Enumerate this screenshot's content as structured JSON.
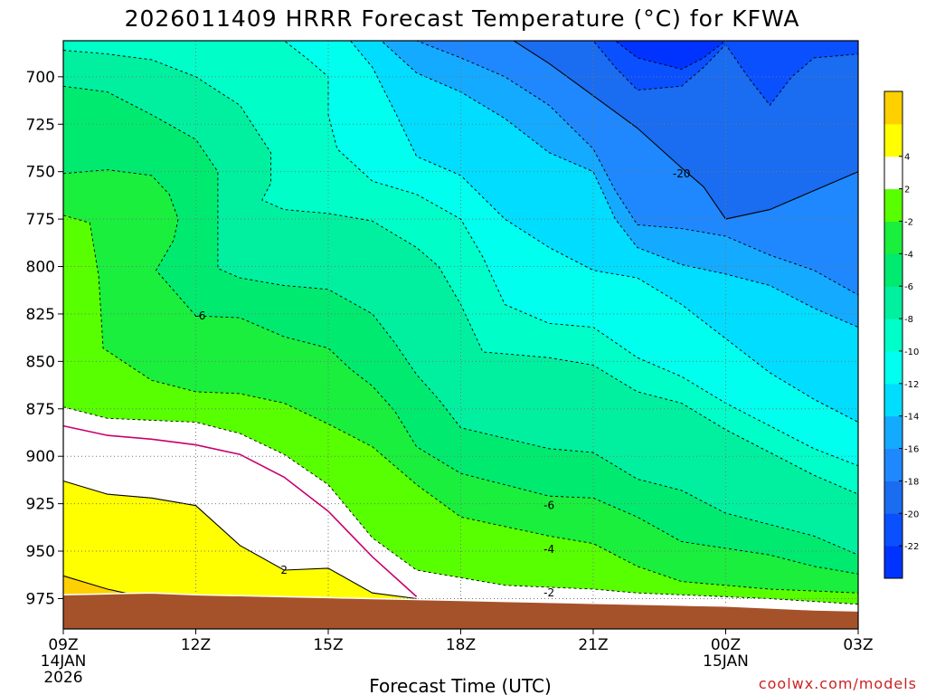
{
  "chart_data": {
    "type": "contour",
    "title": "2026011409 HRRR Forecast Temperature (°C) for KFWA",
    "xlabel": "Forecast Time (UTC)",
    "ylabel": "",
    "credit": "coolwx.com/models",
    "y_ticks": [
      "700",
      "725",
      "750",
      "775",
      "800",
      "825",
      "850",
      "875",
      "900",
      "925",
      "950",
      "975"
    ],
    "y_tick_values": [
      700,
      725,
      750,
      775,
      800,
      825,
      850,
      875,
      900,
      925,
      950,
      975
    ],
    "ylim": [
      681,
      991
    ],
    "xlim": [
      0,
      18
    ],
    "x_ticks": [
      {
        "hour": 0,
        "lines": [
          "09Z",
          "14JAN",
          "2026"
        ]
      },
      {
        "hour": 3,
        "lines": [
          "12Z"
        ]
      },
      {
        "hour": 6,
        "lines": [
          "15Z"
        ]
      },
      {
        "hour": 9,
        "lines": [
          "18Z"
        ]
      },
      {
        "hour": 12,
        "lines": [
          "21Z"
        ]
      },
      {
        "hour": 15,
        "lines": [
          "00Z",
          "15JAN"
        ]
      },
      {
        "hour": 18,
        "lines": [
          "03Z"
        ]
      }
    ],
    "colorbar": {
      "levels": [
        -24,
        -22,
        -20,
        -18,
        -16,
        -14,
        -12,
        -10,
        -8,
        -6,
        -4,
        -2,
        2,
        4,
        6
      ],
      "labels": [
        "-22",
        "-20",
        "-18",
        "-16",
        "-14",
        "-12",
        "-10",
        "-8",
        "-6",
        "-4",
        "-2",
        "2",
        "4"
      ],
      "colors": [
        "#0033ff",
        "#0a50ff",
        "#1a6cf0",
        "#1f88ff",
        "#14aaff",
        "#00ddff",
        "#00ffee",
        "#00ffc8",
        "#00f0a0",
        "#00ea70",
        "#19ef3c",
        "#58ff00",
        "#ffffff",
        "#ffff00",
        "#ffd000"
      ]
    },
    "contour_labels": [
      {
        "text": "-20",
        "hour": 14.0,
        "p": 751
      },
      {
        "text": "-6",
        "hour": 3.1,
        "p": 826
      },
      {
        "text": "-6",
        "hour": 11.0,
        "p": 926
      },
      {
        "text": "-4",
        "hour": 11.0,
        "p": 949
      },
      {
        "text": "2",
        "hour": 5.0,
        "p": 960
      },
      {
        "text": "-2",
        "hour": 11.0,
        "p": 972
      }
    ],
    "layers": [
      {
        "name": "band-lt-neg2",
        "color": "#58ff00",
        "boundary": [
          [
            0,
            874
          ],
          [
            1,
            880
          ],
          [
            3,
            882
          ],
          [
            4,
            888
          ],
          [
            5,
            899
          ],
          [
            6,
            915
          ],
          [
            7,
            943
          ],
          [
            8,
            960
          ],
          [
            10,
            968
          ],
          [
            12,
            970
          ],
          [
            13,
            972
          ],
          [
            15,
            974
          ],
          [
            16,
            975
          ],
          [
            18,
            978
          ]
        ]
      },
      {
        "name": "band-lt-neg4",
        "color": "#19ef3c",
        "boundary": [
          [
            0,
            773
          ],
          [
            0.6,
            777
          ],
          [
            0.8,
            805
          ],
          [
            0.9,
            843
          ],
          [
            2,
            860
          ],
          [
            3,
            866
          ],
          [
            4,
            867
          ],
          [
            5,
            872
          ],
          [
            6,
            883
          ],
          [
            7,
            895
          ],
          [
            8,
            915
          ],
          [
            9,
            932
          ],
          [
            11,
            942
          ],
          [
            12,
            946
          ],
          [
            13,
            958
          ],
          [
            14,
            966
          ],
          [
            16,
            970
          ],
          [
            18,
            972
          ]
        ]
      },
      {
        "name": "band-lt-neg6",
        "color": "#00ea70",
        "boundary": [
          [
            0,
            751
          ],
          [
            1,
            749
          ],
          [
            2,
            752
          ],
          [
            2.4,
            762
          ],
          [
            2.6,
            775
          ],
          [
            2.5,
            786
          ],
          [
            2.1,
            802
          ],
          [
            3,
            826
          ],
          [
            4,
            827
          ],
          [
            5,
            837
          ],
          [
            6,
            843
          ],
          [
            6.5,
            854
          ],
          [
            7,
            863
          ],
          [
            7.5,
            876
          ],
          [
            8,
            895
          ],
          [
            9,
            909
          ],
          [
            11,
            921
          ],
          [
            12,
            922
          ],
          [
            13,
            932
          ],
          [
            14,
            945
          ],
          [
            16,
            952
          ],
          [
            17,
            958
          ],
          [
            18,
            962
          ]
        ]
      },
      {
        "name": "band-lt-neg8",
        "color": "#00f0a0",
        "boundary": [
          [
            0,
            705
          ],
          [
            1,
            708
          ],
          [
            2,
            720
          ],
          [
            3,
            733
          ],
          [
            3.5,
            750
          ],
          [
            3.5,
            776
          ],
          [
            3.5,
            801
          ],
          [
            4,
            806
          ],
          [
            5,
            810
          ],
          [
            6,
            812
          ],
          [
            7,
            825
          ],
          [
            7.5,
            840
          ],
          [
            8,
            857
          ],
          [
            8.5,
            870
          ],
          [
            9,
            885
          ],
          [
            11,
            896
          ],
          [
            12,
            898
          ],
          [
            13,
            912
          ],
          [
            14,
            918
          ],
          [
            15,
            930
          ],
          [
            16,
            936
          ],
          [
            17,
            942
          ],
          [
            18,
            952
          ]
        ]
      },
      {
        "name": "band-lt-neg10",
        "color": "#00ffc8",
        "boundary": [
          [
            0,
            686
          ],
          [
            1,
            688
          ],
          [
            2,
            691
          ],
          [
            3,
            700
          ],
          [
            4,
            715
          ],
          [
            4.7,
            740
          ],
          [
            4.7,
            756
          ],
          [
            4.5,
            765
          ],
          [
            5,
            770
          ],
          [
            6,
            772
          ],
          [
            7,
            776
          ],
          [
            8,
            790
          ],
          [
            8.5,
            800
          ],
          [
            9,
            820
          ],
          [
            9.3,
            835
          ],
          [
            9.5,
            845
          ],
          [
            11,
            848
          ],
          [
            12,
            852
          ],
          [
            13,
            866
          ],
          [
            14,
            872
          ],
          [
            15,
            886
          ],
          [
            16,
            898
          ],
          [
            17,
            910
          ],
          [
            18,
            920
          ]
        ]
      },
      {
        "name": "band-lt-neg12",
        "color": "#00ffee",
        "boundary": [
          [
            0,
            681
          ],
          [
            5,
            681
          ],
          [
            5.5,
            690
          ],
          [
            6,
            700
          ],
          [
            6,
            720
          ],
          [
            6.2,
            738
          ],
          [
            7,
            755
          ],
          [
            8,
            762
          ],
          [
            9,
            775
          ],
          [
            9.5,
            795
          ],
          [
            10,
            820
          ],
          [
            11,
            830
          ],
          [
            12,
            832
          ],
          [
            13,
            848
          ],
          [
            14,
            858
          ],
          [
            15,
            872
          ],
          [
            16,
            884
          ],
          [
            17,
            896
          ],
          [
            18,
            905
          ]
        ]
      },
      {
        "name": "band-lt-neg14",
        "color": "#00ddff",
        "boundary": [
          [
            0,
            681
          ],
          [
            6.5,
            681
          ],
          [
            7,
            695
          ],
          [
            7.5,
            718
          ],
          [
            8,
            742
          ],
          [
            9,
            752
          ],
          [
            10,
            775
          ],
          [
            11,
            790
          ],
          [
            12,
            802
          ],
          [
            13,
            806
          ],
          [
            14,
            820
          ],
          [
            15,
            838
          ],
          [
            16,
            856
          ],
          [
            17,
            870
          ],
          [
            18,
            882
          ]
        ]
      },
      {
        "name": "band-lt-neg16",
        "color": "#14aaff",
        "boundary": [
          [
            0,
            681
          ],
          [
            7.2,
            681
          ],
          [
            8,
            698
          ],
          [
            9,
            708
          ],
          [
            10,
            722
          ],
          [
            11,
            740
          ],
          [
            12,
            750
          ],
          [
            12.5,
            775
          ],
          [
            13,
            790
          ],
          [
            14,
            799
          ],
          [
            15,
            804
          ],
          [
            16,
            810
          ],
          [
            17,
            822
          ],
          [
            18,
            832
          ]
        ]
      },
      {
        "name": "band-lt-neg18",
        "color": "#1f88ff",
        "boundary": [
          [
            0,
            681
          ],
          [
            8,
            681
          ],
          [
            9,
            690
          ],
          [
            10,
            700
          ],
          [
            11,
            715
          ],
          [
            12,
            738
          ],
          [
            12.5,
            760
          ],
          [
            13,
            778
          ],
          [
            14,
            780
          ],
          [
            15,
            784
          ],
          [
            16,
            794
          ],
          [
            17,
            802
          ],
          [
            18,
            815
          ]
        ]
      },
      {
        "name": "band-lt-neg20",
        "color": "#1a6cf0",
        "boundary": [
          [
            0,
            681
          ],
          [
            10.2,
            681
          ],
          [
            11,
            693
          ],
          [
            12,
            710
          ],
          [
            13,
            727
          ],
          [
            14,
            748
          ],
          [
            14.5,
            758
          ],
          [
            15,
            775
          ],
          [
            16,
            770
          ],
          [
            17,
            760
          ],
          [
            18,
            750
          ]
        ]
      },
      {
        "name": "band-lt-neg22",
        "color": "#0a50ff",
        "boundary": [
          [
            0,
            681
          ],
          [
            12,
            681
          ],
          [
            12.5,
            695
          ],
          [
            13,
            707
          ],
          [
            14,
            705
          ],
          [
            14.5,
            695
          ],
          [
            15,
            683
          ],
          [
            15.5,
            700
          ],
          [
            16,
            715
          ],
          [
            16.5,
            700
          ],
          [
            17,
            690
          ],
          [
            18,
            688
          ]
        ]
      },
      {
        "name": "band-lt-neg24",
        "color": "#0033ff",
        "boundary": [
          [
            0,
            681
          ],
          [
            12.5,
            681
          ],
          [
            13,
            690
          ],
          [
            14,
            696
          ],
          [
            14.5,
            690
          ],
          [
            15,
            681
          ],
          [
            18,
            681
          ]
        ]
      }
    ],
    "warm_layers": [
      {
        "name": "band-gt-2",
        "color": "#ffff00",
        "boundary": [
          [
            0,
            913
          ],
          [
            1,
            920
          ],
          [
            2,
            922
          ],
          [
            3,
            926
          ],
          [
            4,
            947
          ],
          [
            5,
            960
          ],
          [
            6,
            959
          ],
          [
            7,
            972
          ],
          [
            8,
            975
          ]
        ]
      },
      {
        "name": "band-gt-4",
        "color": "#ffd000",
        "boundary": [
          [
            0,
            963
          ],
          [
            1,
            970
          ],
          [
            2,
            975
          ],
          [
            3,
            976
          ]
        ]
      }
    ],
    "zero_line": [
      [
        0,
        884
      ],
      [
        1,
        889
      ],
      [
        2,
        891
      ],
      [
        3,
        894
      ],
      [
        4,
        899
      ],
      [
        5,
        911
      ],
      [
        6,
        929
      ],
      [
        7,
        953
      ],
      [
        8,
        974
      ]
    ],
    "surface_line": [
      [
        0,
        973
      ],
      [
        1,
        972.5
      ],
      [
        2,
        972
      ],
      [
        3,
        973
      ],
      [
        4,
        973.5
      ],
      [
        5,
        974
      ],
      [
        6,
        974.5
      ],
      [
        7,
        975
      ],
      [
        8,
        975.5
      ],
      [
        9,
        976
      ],
      [
        10,
        976.5
      ],
      [
        11,
        977
      ],
      [
        12,
        977.5
      ],
      [
        13,
        978
      ],
      [
        14,
        978.5
      ],
      [
        15,
        979
      ],
      [
        16,
        980
      ],
      [
        17,
        981
      ],
      [
        18,
        981.5
      ]
    ],
    "terrain_color": "#a5522a"
  }
}
